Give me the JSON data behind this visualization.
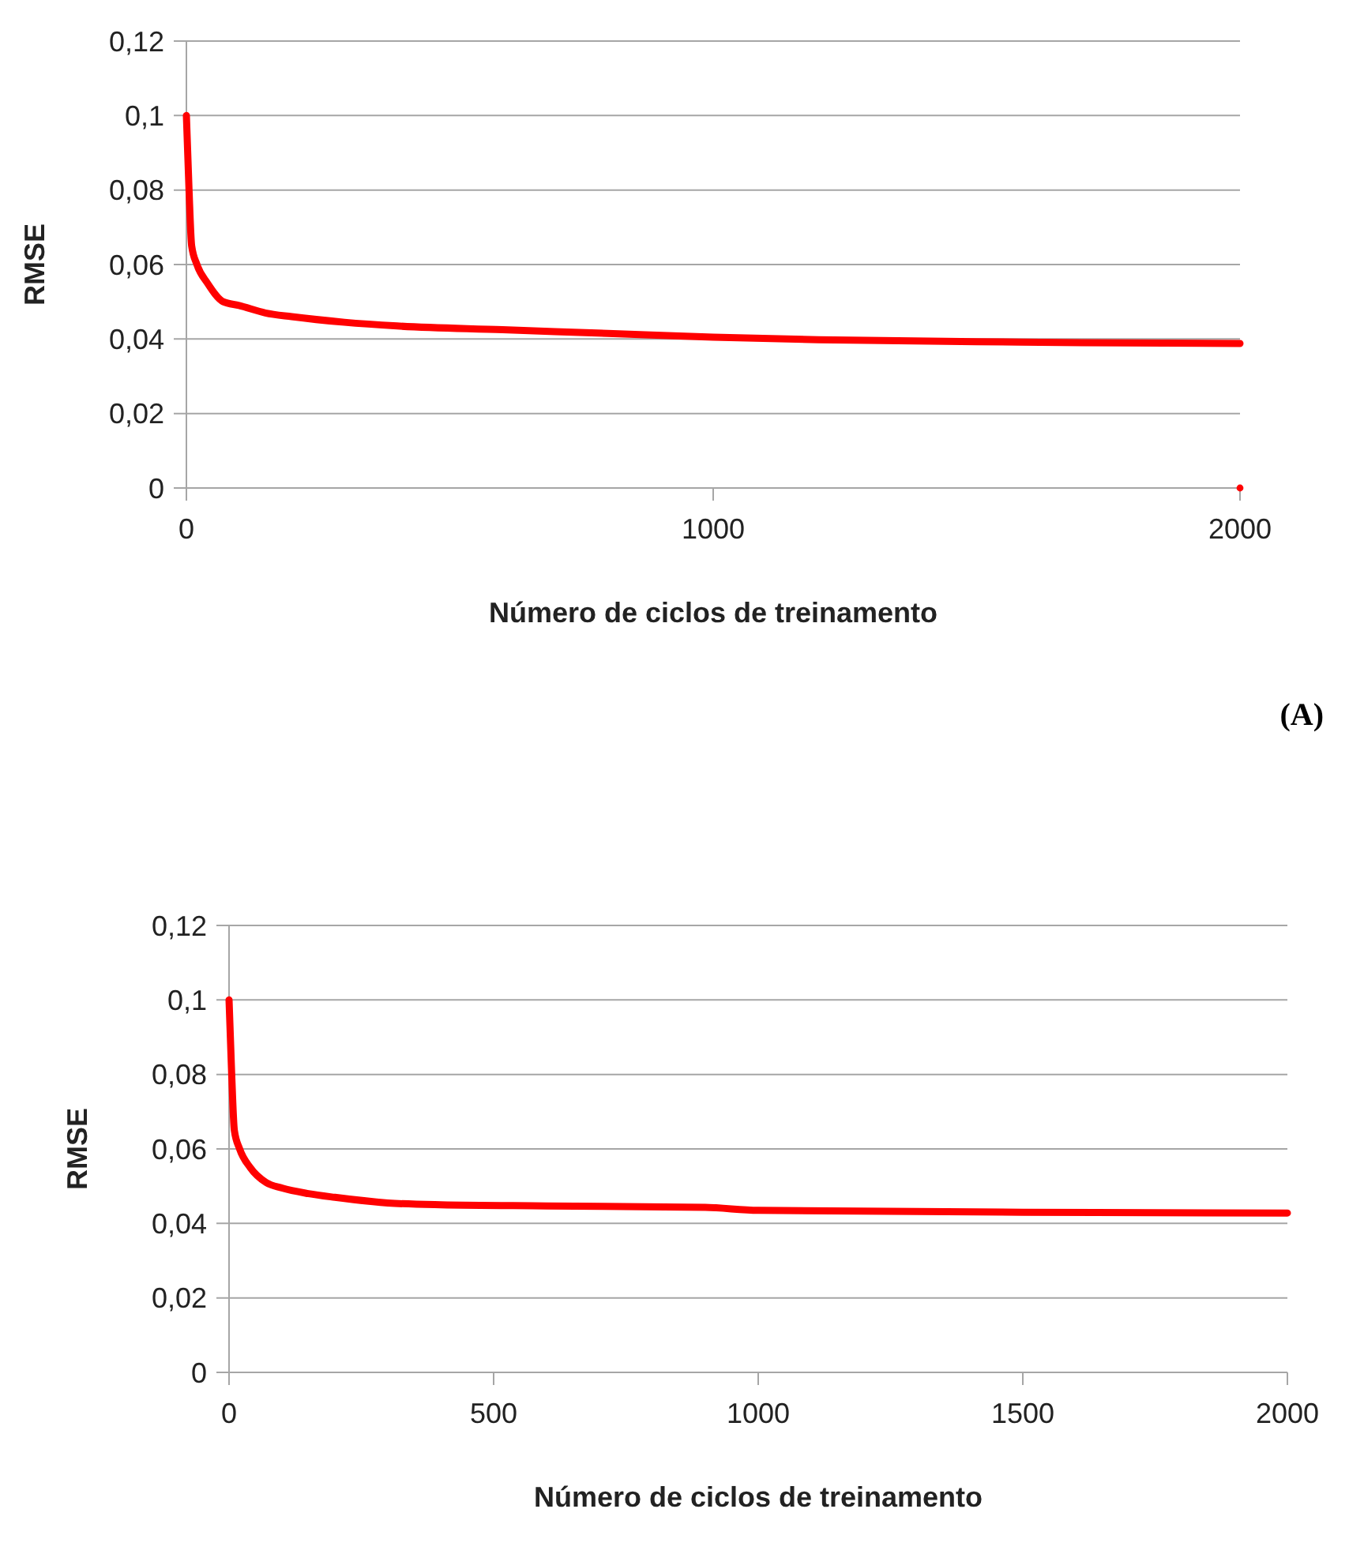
{
  "chart_data": [
    {
      "type": "line",
      "xlabel": "Número de ciclos de treinamento",
      "ylabel": "RMSE",
      "annotations": [
        "(A)"
      ],
      "xlim": [
        0,
        2000
      ],
      "xticks": [
        0,
        1000,
        2000
      ],
      "ylim": [
        0,
        0.12
      ],
      "yticks": [
        {
          "value": 0,
          "label": "0"
        },
        {
          "value": 0.02,
          "label": "0,02"
        },
        {
          "value": 0.04,
          "label": "0,04"
        },
        {
          "value": 0.06,
          "label": "0,06"
        },
        {
          "value": 0.08,
          "label": "0,08"
        },
        {
          "value": 0.1,
          "label": "0,1"
        },
        {
          "value": 0.12,
          "label": "0,12"
        }
      ],
      "grid": "y",
      "series": [
        {
          "color": "#ff0000",
          "x": [
            0,
            5,
            10,
            20,
            40,
            70,
            100,
            150,
            200,
            300,
            400,
            600,
            800,
            1000,
            1200,
            1500,
            1700,
            2000
          ],
          "values": [
            0.1,
            0.08,
            0.065,
            0.06,
            0.055,
            0.05,
            0.049,
            0.047,
            0.046,
            0.0445,
            0.0435,
            0.0425,
            0.0415,
            0.0405,
            0.0398,
            0.0393,
            0.039,
            0.0388
          ]
        },
        {
          "type": "scatter",
          "color": "#ff0000",
          "x": [
            2000
          ],
          "values": [
            0
          ]
        }
      ]
    },
    {
      "type": "line",
      "xlabel": "Número de ciclos de treinamento",
      "ylabel": "RMSE",
      "xlim": [
        0,
        2000
      ],
      "xticks": [
        0,
        500,
        1000,
        1500,
        2000
      ],
      "ylim": [
        0,
        0.12
      ],
      "yticks": [
        {
          "value": 0,
          "label": "0"
        },
        {
          "value": 0.02,
          "label": "0,02"
        },
        {
          "value": 0.04,
          "label": "0,04"
        },
        {
          "value": 0.06,
          "label": "0,06"
        },
        {
          "value": 0.08,
          "label": "0,08"
        },
        {
          "value": 0.1,
          "label": "0,1"
        },
        {
          "value": 0.12,
          "label": "0,12"
        }
      ],
      "grid": "y",
      "series": [
        {
          "color": "#ff0000",
          "x": [
            0,
            5,
            10,
            20,
            40,
            70,
            100,
            150,
            200,
            300,
            400,
            600,
            900,
            1000,
            1500,
            2000
          ],
          "values": [
            0.1,
            0.08,
            0.065,
            0.06,
            0.055,
            0.051,
            0.0495,
            0.048,
            0.047,
            0.0455,
            0.045,
            0.0447,
            0.0443,
            0.0435,
            0.043,
            0.0428
          ]
        }
      ]
    }
  ]
}
